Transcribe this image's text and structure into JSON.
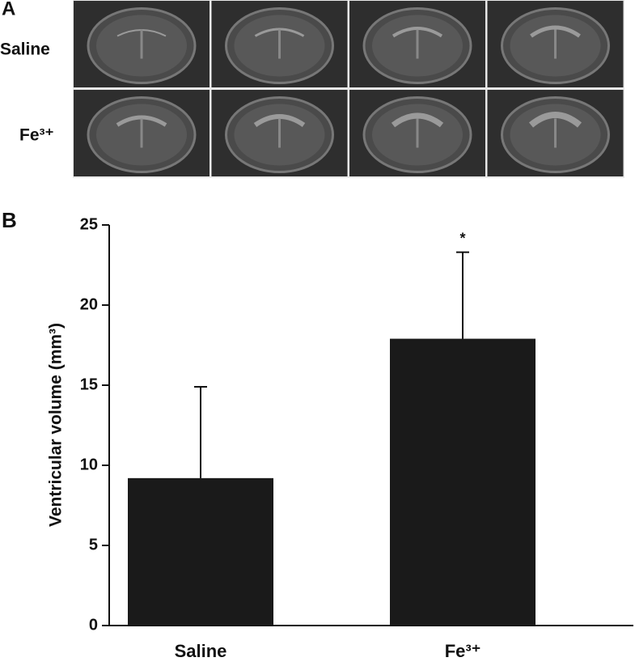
{
  "panel_a": {
    "label": "A",
    "rows": [
      "Saline",
      "Fe³⁺"
    ]
  },
  "chart_data": {
    "type": "bar",
    "panel_label": "B",
    "y_label": "Ventricular volume (mm³)",
    "categories": [
      "Saline",
      "Fe³⁺"
    ],
    "values": [
      9.2,
      17.9
    ],
    "errors": [
      5.7,
      5.4
    ],
    "color": "#1a1a1a",
    "annotations": [
      {
        "text": "*",
        "category": "Fe³⁺"
      }
    ],
    "ylim": [
      0,
      25
    ],
    "yticks": [
      0,
      5,
      10,
      15,
      20,
      25
    ],
    "grid": false
  }
}
